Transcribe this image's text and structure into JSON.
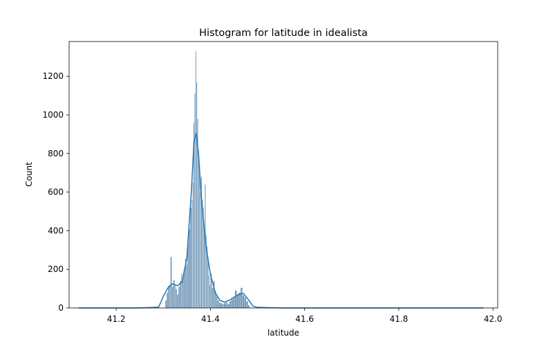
{
  "chart_data": {
    "type": "histogram",
    "title": "Histogram for latitude in idealista",
    "xlabel": "latitude",
    "ylabel": "Count",
    "xlim": [
      41.1,
      42.01
    ],
    "ylim": [
      0,
      1380
    ],
    "x_ticks": [
      "41.2",
      "41.4",
      "41.6",
      "41.8",
      "42.0"
    ],
    "y_ticks": [
      "0",
      "200",
      "400",
      "600",
      "800",
      "1000",
      "1200"
    ],
    "grid": false,
    "legend": "none",
    "bar_color": "#5b87ad",
    "kde_color": "#1f77b4",
    "bins": [
      [
        41.304,
        40
      ],
      [
        41.307,
        80
      ],
      [
        41.31,
        115
      ],
      [
        41.313,
        125
      ],
      [
        41.315,
        265
      ],
      [
        41.318,
        110
      ],
      [
        41.321,
        145
      ],
      [
        41.324,
        120
      ],
      [
        41.326,
        100
      ],
      [
        41.329,
        70
      ],
      [
        41.332,
        110
      ],
      [
        41.335,
        140
      ],
      [
        41.338,
        180
      ],
      [
        41.34,
        160
      ],
      [
        41.343,
        200
      ],
      [
        41.346,
        255
      ],
      [
        41.349,
        225
      ],
      [
        41.351,
        340
      ],
      [
        41.354,
        410
      ],
      [
        41.357,
        520
      ],
      [
        41.36,
        560
      ],
      [
        41.362,
        650
      ],
      [
        41.364,
        960
      ],
      [
        41.366,
        1110
      ],
      [
        41.368,
        1330
      ],
      [
        41.37,
        1170
      ],
      [
        41.372,
        980
      ],
      [
        41.374,
        820
      ],
      [
        41.376,
        740
      ],
      [
        41.378,
        600
      ],
      [
        41.38,
        680
      ],
      [
        41.382,
        560
      ],
      [
        41.384,
        520
      ],
      [
        41.386,
        420
      ],
      [
        41.388,
        640
      ],
      [
        41.39,
        380
      ],
      [
        41.392,
        320
      ],
      [
        41.394,
        250
      ],
      [
        41.396,
        170
      ],
      [
        41.398,
        120
      ],
      [
        41.4,
        180
      ],
      [
        41.403,
        105
      ],
      [
        41.406,
        140
      ],
      [
        41.409,
        90
      ],
      [
        41.412,
        60
      ],
      [
        41.415,
        40
      ],
      [
        41.418,
        30
      ],
      [
        41.421,
        25
      ],
      [
        41.425,
        20
      ],
      [
        41.428,
        25
      ],
      [
        41.432,
        30
      ],
      [
        41.436,
        20
      ],
      [
        41.44,
        35
      ],
      [
        41.444,
        45
      ],
      [
        41.448,
        55
      ],
      [
        41.452,
        90
      ],
      [
        41.456,
        70
      ],
      [
        41.46,
        80
      ],
      [
        41.464,
        105
      ],
      [
        41.468,
        65
      ],
      [
        41.472,
        55
      ],
      [
        41.476,
        35
      ],
      [
        41.48,
        15
      ]
    ],
    "kde": [
      [
        41.12,
        0
      ],
      [
        41.25,
        0
      ],
      [
        41.29,
        4
      ],
      [
        41.3,
        60
      ],
      [
        41.31,
        105
      ],
      [
        41.32,
        125
      ],
      [
        41.33,
        115
      ],
      [
        41.34,
        135
      ],
      [
        41.35,
        260
      ],
      [
        41.36,
        620
      ],
      [
        41.365,
        860
      ],
      [
        41.37,
        905
      ],
      [
        41.375,
        790
      ],
      [
        41.38,
        600
      ],
      [
        41.39,
        330
      ],
      [
        41.4,
        175
      ],
      [
        41.41,
        80
      ],
      [
        41.42,
        40
      ],
      [
        41.43,
        30
      ],
      [
        41.44,
        40
      ],
      [
        41.45,
        55
      ],
      [
        41.46,
        70
      ],
      [
        41.47,
        75
      ],
      [
        41.48,
        45
      ],
      [
        41.49,
        10
      ],
      [
        41.5,
        3
      ],
      [
        41.55,
        0
      ],
      [
        41.98,
        0
      ]
    ]
  }
}
